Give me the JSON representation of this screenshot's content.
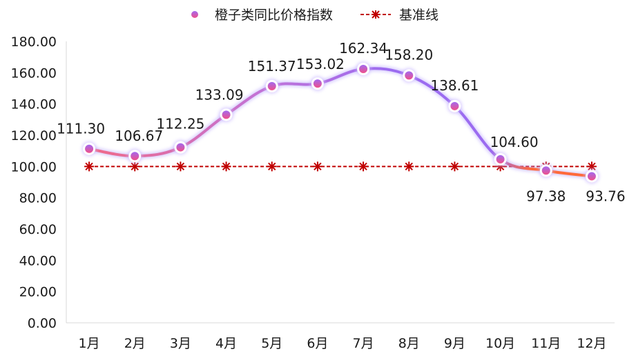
{
  "chart_data": {
    "type": "line",
    "categories": [
      "1月",
      "2月",
      "3月",
      "4月",
      "5月",
      "6月",
      "7月",
      "8月",
      "9月",
      "10月",
      "11月",
      "12月"
    ],
    "series": [
      {
        "name": "橙子类同比价格指数",
        "values": [
          111.3,
          106.67,
          112.25,
          133.09,
          151.37,
          153.02,
          162.34,
          158.2,
          138.61,
          104.6,
          97.38,
          93.76
        ],
        "labels": [
          "111.30",
          "106.67",
          "112.25",
          "133.09",
          "151.37",
          "153.02",
          "162.34",
          "158.20",
          "138.61",
          "104.60",
          "97.38",
          "93.76"
        ]
      },
      {
        "name": "基准线",
        "values": [
          100,
          100,
          100,
          100,
          100,
          100,
          100,
          100,
          100,
          100,
          100,
          100
        ]
      }
    ],
    "y_ticks": [
      "0.00",
      "20.00",
      "40.00",
      "60.00",
      "80.00",
      "100.00",
      "120.00",
      "140.00",
      "160.00",
      "180.00"
    ],
    "ylim": [
      0,
      180
    ],
    "grid": false,
    "legend_position": "top",
    "colors": {
      "index_start": "#f05a7e",
      "index_mid": "#9b6bf0",
      "index_end": "#ff6a3a",
      "baseline": "#c00000",
      "axis": "#d9d9d9"
    }
  }
}
